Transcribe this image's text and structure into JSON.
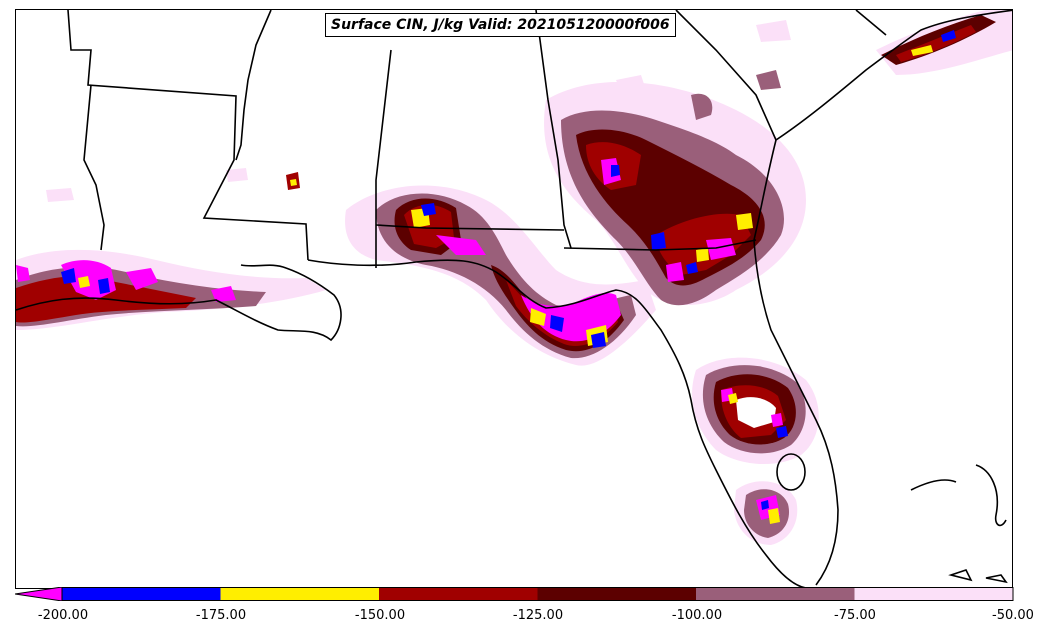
{
  "title": "Surface CIN, J/kg Valid: 202105120000f006",
  "colorbar": {
    "ticks": [
      "-200.00",
      "-175.00",
      "-150.00",
      "-125.00",
      "-100.00",
      "-75.00",
      "-50.00"
    ],
    "bins": [
      {
        "from": -200,
        "to": -175,
        "color": "#0000ff"
      },
      {
        "from": -175,
        "to": -150,
        "color": "#ffee00"
      },
      {
        "from": -150,
        "to": -125,
        "color": "#a00000"
      },
      {
        "from": -125,
        "to": -100,
        "color": "#5c0000"
      },
      {
        "from": -100,
        "to": -75,
        "color": "#9a5f7a"
      },
      {
        "from": -75,
        "to": -50,
        "color": "#fbe0f8"
      }
    ],
    "under_color": "#ff00ff"
  },
  "palette": {
    "lightest": "#fbe0f8",
    "mauve": "#9a5f7a",
    "darkred": "#5c0000",
    "red": "#a00000",
    "yellow": "#ffee00",
    "blue": "#0000ff",
    "magenta": "#ff00ff"
  }
}
